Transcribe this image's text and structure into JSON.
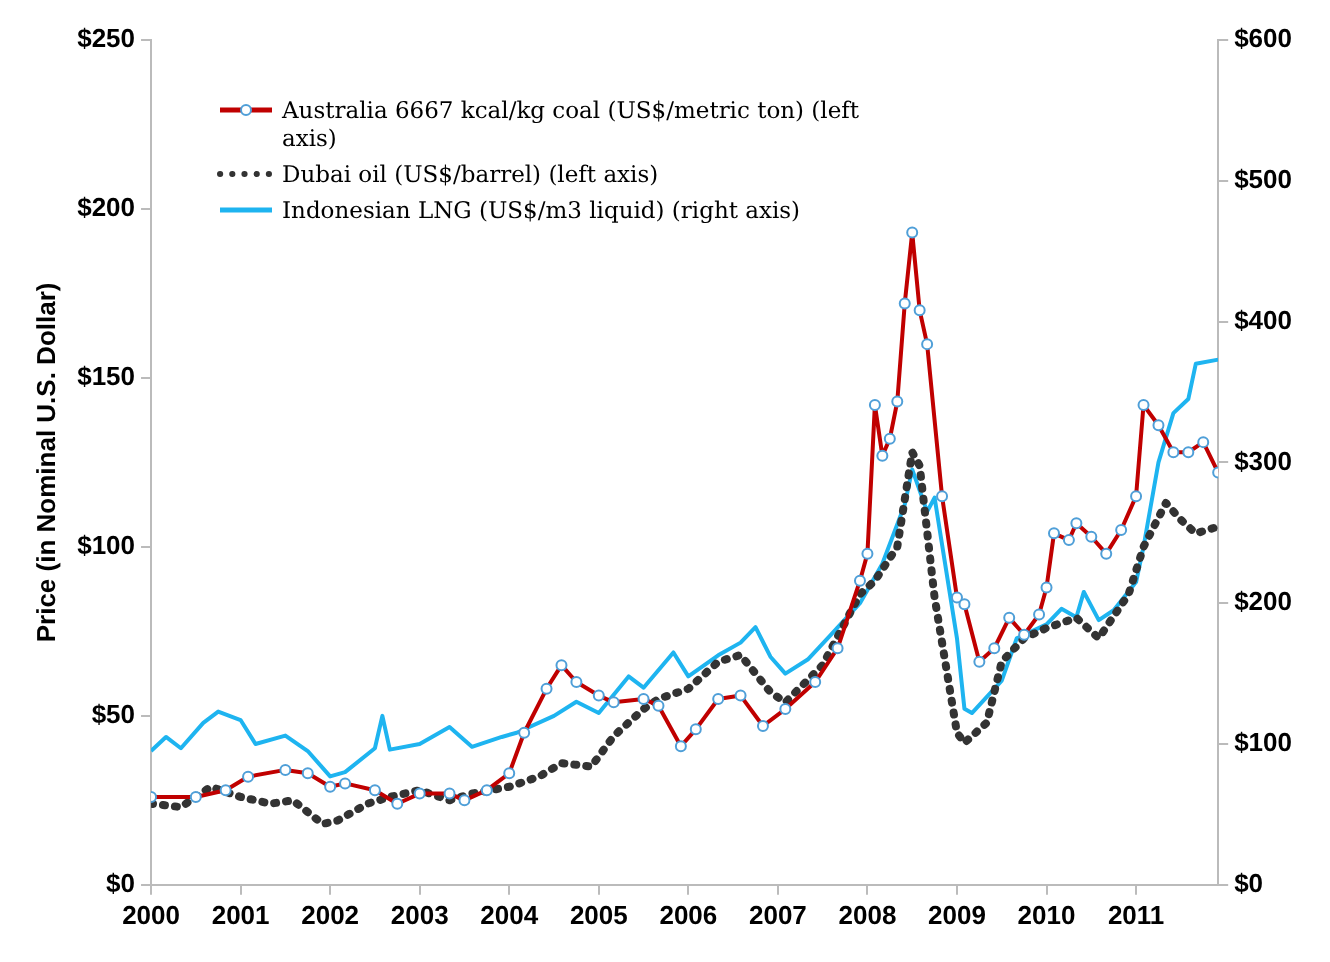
{
  "chart_data": {
    "type": "line",
    "ylabel": "Price (in Nominal U.S. Dollar)",
    "xlim": [
      "2000-01",
      "2011-12"
    ],
    "xticks": [
      "2000",
      "2001",
      "2002",
      "2003",
      "2004",
      "2005",
      "2006",
      "2007",
      "2008",
      "2009",
      "2010",
      "2011"
    ],
    "ylim": [
      0,
      250
    ],
    "yticks": [
      {
        "value": 0,
        "label": "$0"
      },
      {
        "value": 50,
        "label": "$50"
      },
      {
        "value": 100,
        "label": "$100"
      },
      {
        "value": 150,
        "label": "$150"
      },
      {
        "value": 200,
        "label": "$200"
      },
      {
        "value": 250,
        "label": "$250"
      }
    ],
    "y2lim": [
      0,
      600
    ],
    "y2ticks": [
      {
        "value": 0,
        "label": "$0"
      },
      {
        "value": 100,
        "label": "$100"
      },
      {
        "value": 200,
        "label": "$200"
      },
      {
        "value": 300,
        "label": "$300"
      },
      {
        "value": 400,
        "label": "$400"
      },
      {
        "value": 500,
        "label": "$500"
      },
      {
        "value": 600,
        "label": "$600"
      }
    ],
    "grid": false,
    "legend": "top left",
    "series": [
      {
        "name": "Australia 6667 kcal/kg coal (US$/metric ton) (left axis)",
        "color": "#c00000",
        "marker": "circle",
        "line_style": "solid",
        "x": [
          "2000-01",
          "2000-07",
          "2000-11",
          "2001-02",
          "2001-07",
          "2001-10",
          "2002-01",
          "2002-03",
          "2002-07",
          "2002-10",
          "2003-01",
          "2003-05",
          "2003-07",
          "2003-10",
          "2004-01",
          "2004-03",
          "2004-06",
          "2004-08",
          "2004-10",
          "2005-01",
          "2005-03",
          "2005-07",
          "2005-09",
          "2005-12",
          "2006-02",
          "2006-05",
          "2006-08",
          "2006-11",
          "2007-02",
          "2007-06",
          "2007-09",
          "2007-12",
          "2008-01",
          "2008-02",
          "2008-03",
          "2008-04",
          "2008-05",
          "2008-06",
          "2008-07",
          "2008-08",
          "2008-09",
          "2008-11",
          "2009-01",
          "2009-02",
          "2009-04",
          "2009-06",
          "2009-08",
          "2009-10",
          "2009-12",
          "2010-01",
          "2010-02",
          "2010-04",
          "2010-05",
          "2010-07",
          "2010-09",
          "2010-11",
          "2011-01",
          "2011-02",
          "2011-04",
          "2011-06",
          "2011-08",
          "2011-10",
          "2011-12"
        ],
        "values": [
          26,
          26,
          28,
          32,
          34,
          33,
          29,
          30,
          28,
          24,
          27,
          27,
          25,
          28,
          33,
          45,
          58,
          65,
          60,
          56,
          54,
          55,
          53,
          41,
          46,
          55,
          56,
          47,
          52,
          60,
          70,
          90,
          98,
          142,
          127,
          132,
          143,
          172,
          193,
          170,
          160,
          115,
          85,
          83,
          66,
          70,
          79,
          74,
          80,
          88,
          104,
          102,
          107,
          103,
          98,
          105,
          115,
          142,
          136,
          128,
          128,
          131,
          122
        ]
      },
      {
        "name": "Dubai oil (US$/barrel) (left axis)",
        "color": "#333333",
        "marker": "none",
        "line_style": "dotted",
        "x": [
          "2000-01",
          "2000-05",
          "2000-09",
          "2001-01",
          "2001-05",
          "2001-08",
          "2001-12",
          "2002-02",
          "2002-06",
          "2002-09",
          "2003-01",
          "2003-05",
          "2003-08",
          "2004-01",
          "2004-05",
          "2004-08",
          "2004-12",
          "2005-03",
          "2005-07",
          "2005-09",
          "2006-01",
          "2006-05",
          "2006-08",
          "2006-12",
          "2007-02",
          "2007-07",
          "2007-12",
          "2008-02",
          "2008-05",
          "2008-07",
          "2008-08",
          "2008-10",
          "2009-01",
          "2009-02",
          "2009-05",
          "2009-07",
          "2009-10",
          "2010-01",
          "2010-05",
          "2010-08",
          "2010-12",
          "2011-02",
          "2011-05",
          "2011-07",
          "2011-09",
          "2011-12"
        ],
        "values": [
          24,
          23,
          29,
          26,
          24,
          25,
          18,
          19,
          24,
          26,
          28,
          25,
          27,
          29,
          32,
          36,
          35,
          44,
          52,
          55,
          58,
          66,
          68,
          57,
          54,
          65,
          86,
          90,
          100,
          128,
          124,
          85,
          45,
          42,
          48,
          66,
          73,
          76,
          79,
          73,
          86,
          100,
          113,
          108,
          104,
          106
        ],
        "axis": "y"
      },
      {
        "name": "Indonesian LNG (US$/m3 liquid) (right axis)",
        "color": "#1eb4f0",
        "marker": "none",
        "line_style": "solid",
        "axis": "y2",
        "x": [
          "2000-01",
          "2000-03",
          "2000-05",
          "2000-08",
          "2000-10",
          "2001-01",
          "2001-03",
          "2001-07",
          "2001-10",
          "2002-01",
          "2002-03",
          "2002-07",
          "2002-08",
          "2002-09",
          "2003-01",
          "2003-05",
          "2003-08",
          "2003-12",
          "2004-02",
          "2004-07",
          "2004-10",
          "2005-01",
          "2005-05",
          "2005-07",
          "2005-11",
          "2006-01",
          "2006-05",
          "2006-08",
          "2006-10",
          "2006-12",
          "2007-02",
          "2007-05",
          "2007-08",
          "2007-12",
          "2008-03",
          "2008-06",
          "2008-07",
          "2008-09",
          "2008-10",
          "2009-01",
          "2009-02",
          "2009-03",
          "2009-07",
          "2009-09",
          "2010-01",
          "2010-03",
          "2010-05",
          "2010-06",
          "2010-08",
          "2010-10",
          "2011-01",
          "2011-02",
          "2011-04",
          "2011-06",
          "2011-08",
          "2011-09",
          "2011-12"
        ],
        "values": [
          95,
          105,
          97,
          115,
          123,
          117,
          100,
          106,
          95,
          77,
          80,
          97,
          120,
          96,
          100,
          112,
          98,
          105,
          108,
          120,
          130,
          122,
          148,
          140,
          165,
          148,
          163,
          172,
          183,
          162,
          150,
          160,
          177,
          200,
          228,
          270,
          295,
          265,
          275,
          175,
          125,
          122,
          145,
          175,
          185,
          196,
          190,
          208,
          188,
          195,
          215,
          240,
          300,
          335,
          345,
          370,
          373
        ]
      }
    ]
  }
}
